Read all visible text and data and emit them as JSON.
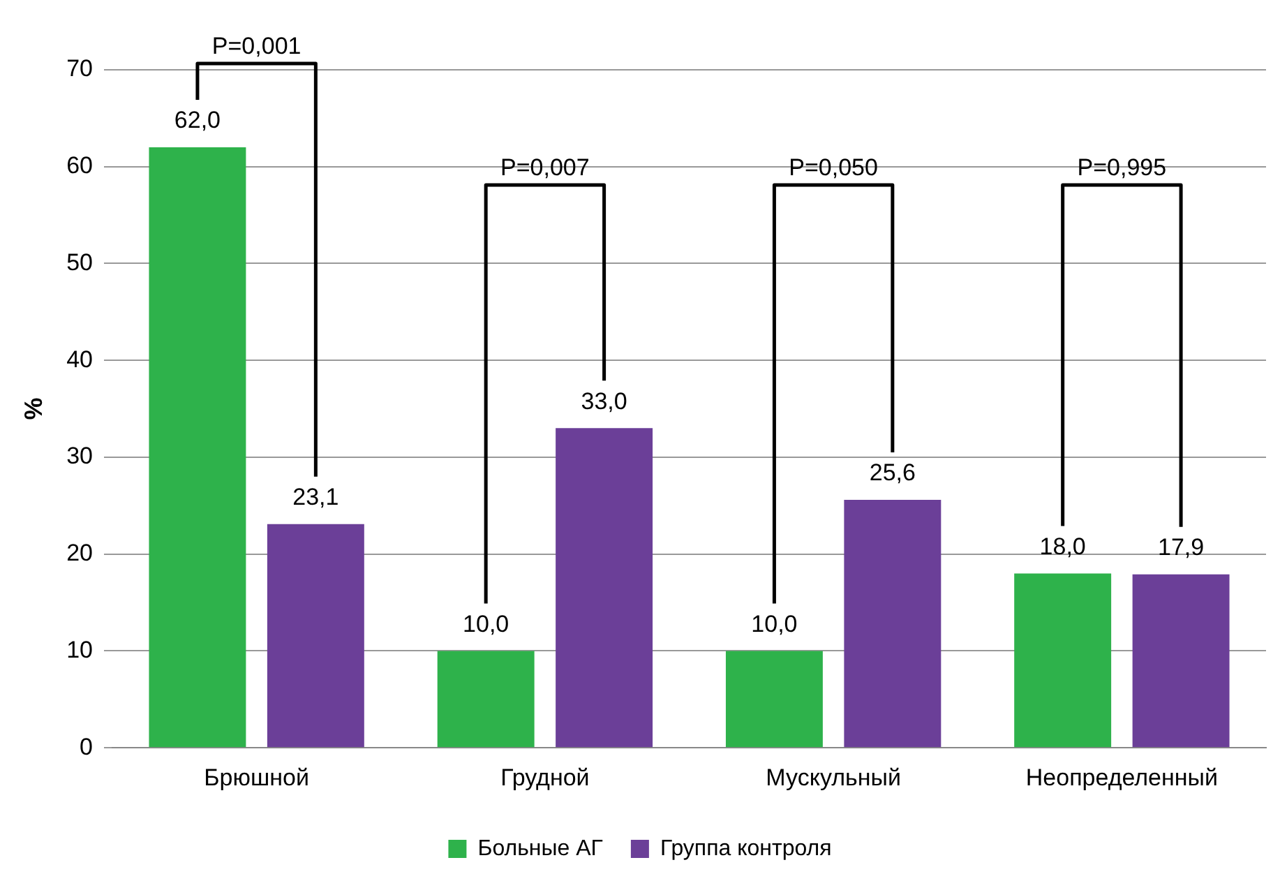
{
  "chart_data": {
    "type": "bar",
    "ylabel": "%",
    "categories": [
      "Брюшной",
      "Грудной",
      "Мускульный",
      "Неопределенный"
    ],
    "series": [
      {
        "name": "Больные АГ",
        "color": "#2eb24b",
        "values": [
          62.0,
          10.0,
          10.0,
          18.0
        ],
        "value_labels": [
          "62,0",
          "10,0",
          "10,0",
          "18,0"
        ]
      },
      {
        "name": "Группа контроля",
        "color": "#6b3f98",
        "values": [
          23.1,
          33.0,
          25.6,
          17.9
        ],
        "value_labels": [
          "23,1",
          "33,0",
          "25,6",
          "17,9"
        ]
      }
    ],
    "ylim": [
      0,
      70
    ],
    "yticks": [
      0,
      10,
      20,
      30,
      40,
      50,
      60,
      70
    ],
    "grid": "y",
    "legend": "bottom",
    "annotations": [
      "P=0,001",
      "P=0,007",
      "P=0,050",
      "P=0,995"
    ]
  }
}
